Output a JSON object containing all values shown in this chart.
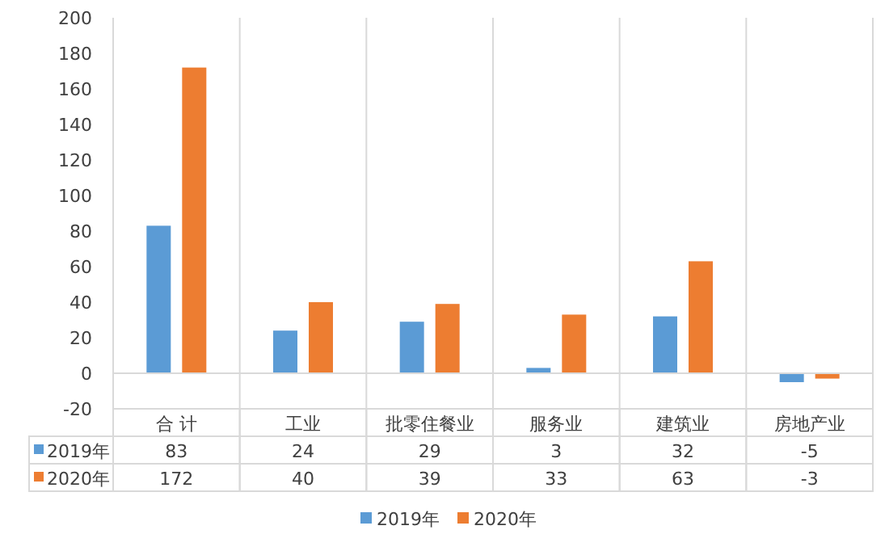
{
  "chart_data": {
    "type": "bar",
    "categories": [
      "合 计",
      "工业",
      "批零住餐业",
      "服务业",
      "建筑业",
      "房地产业"
    ],
    "series": [
      {
        "name": "2019年",
        "color": "#5b9bd5",
        "values": [
          83,
          24,
          29,
          3,
          32,
          -5
        ]
      },
      {
        "name": "2020年",
        "color": "#ed7d31",
        "values": [
          172,
          40,
          39,
          33,
          63,
          -3
        ]
      }
    ],
    "ylim": [
      -20,
      200
    ],
    "yticks": [
      -20,
      0,
      20,
      40,
      60,
      80,
      100,
      120,
      140,
      160,
      180,
      200
    ],
    "grid": "x",
    "legend": "bottom",
    "data_labels": true
  }
}
